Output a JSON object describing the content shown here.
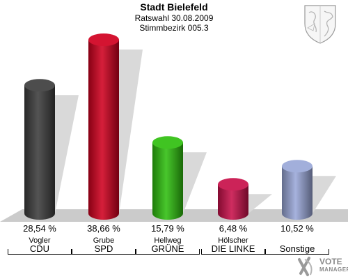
{
  "header": {
    "title": "Stadt Bielefeld",
    "subtitle": "Ratswahl 30.08.2009",
    "district": "Stimmbezirk 005.3"
  },
  "chart_data": {
    "type": "bar",
    "title": "Stadt Bielefeld",
    "ylim": [
      0,
      40
    ],
    "categories": [
      "CDU",
      "SPD",
      "GRÜNE",
      "DIE LINKE",
      "Sonstige"
    ],
    "candidates": [
      "Vogler",
      "Grube",
      "Hellweg",
      "Hölscher",
      ""
    ],
    "values": [
      28.54,
      38.66,
      15.79,
      6.48,
      10.52
    ],
    "value_labels": [
      "28,54 %",
      "38,66 %",
      "15,79 %",
      "6,48 %",
      "10,52 %"
    ],
    "colors": [
      "#3d3d3d",
      "#d0001f",
      "#2fbf0f",
      "#c8104a",
      "#9aa8d8"
    ]
  },
  "logo": {
    "line1": "VOTE",
    "line2": "MANAGER"
  }
}
